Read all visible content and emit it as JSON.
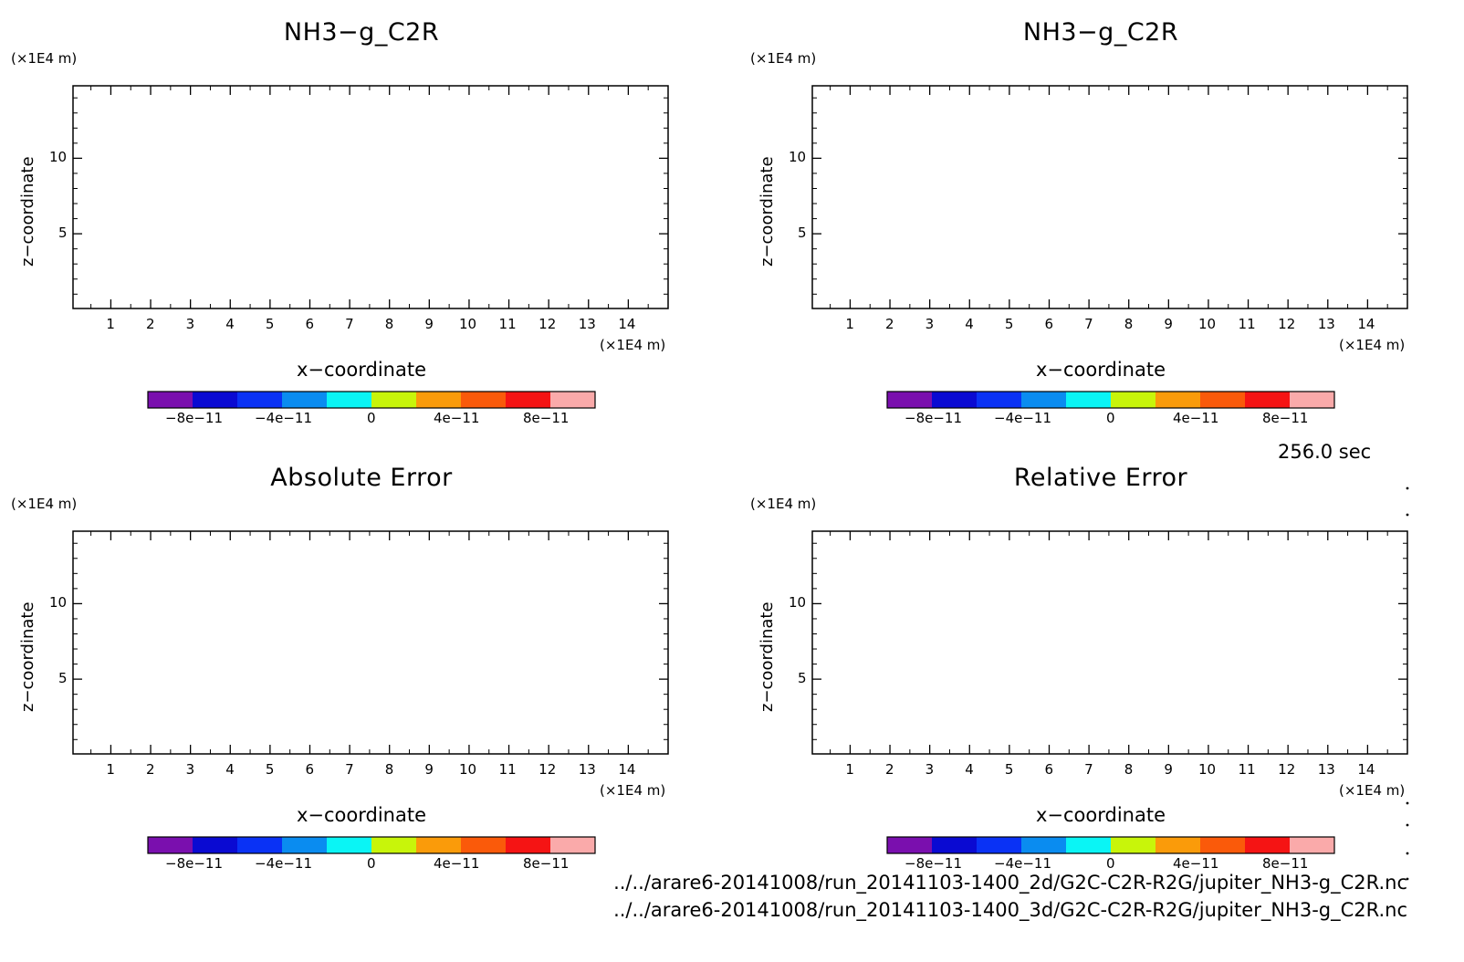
{
  "figure": {
    "time_label": "256.0 sec",
    "source_files": [
      "../../arare6-20141008/run_20141103-1400_2d/G2C-C2R-R2G/jupiter_NH3-g_C2R.nc",
      "../../arare6-20141008/run_20141103-1400_3d/G2C-C2R-R2G/jupiter_NH3-g_C2R.nc"
    ]
  },
  "chart_data": [
    {
      "type": "contour",
      "title": "NH3−g_C2R",
      "xlabel": "x−coordinate",
      "ylabel": "z−coordinate",
      "x_unit": "(×1E4 m)",
      "y_unit": "(×1E4 m)",
      "xlim": [
        0.05,
        15.0
      ],
      "ylim": [
        0.05,
        14.8
      ],
      "x_ticks": [
        1,
        2,
        3,
        4,
        5,
        6,
        7,
        8,
        9,
        10,
        11,
        12,
        13,
        14
      ],
      "y_ticks": [
        5,
        10
      ],
      "values": [],
      "colorbar": {
        "colors": [
          "#7a0fae",
          "#0a0ad2",
          "#0a32f5",
          "#0a8cf0",
          "#0af5f5",
          "#c8f50a",
          "#fa9b0a",
          "#fa5a0a",
          "#f51414",
          "#faaaaa"
        ],
        "bounds": [
          -1e-10,
          -8e-11,
          -6e-11,
          -4e-11,
          -2e-11,
          0,
          2e-11,
          4e-11,
          6e-11,
          8e-11,
          1e-10
        ],
        "tick_labels": [
          "−8e−11",
          "−4e−11",
          "0",
          "4e−11",
          "8e−11"
        ]
      }
    },
    {
      "type": "contour",
      "title": "NH3−g_C2R",
      "xlabel": "x−coordinate",
      "ylabel": "z−coordinate",
      "x_unit": "(×1E4 m)",
      "y_unit": "(×1E4 m)",
      "xlim": [
        0.05,
        15.0
      ],
      "ylim": [
        0.05,
        14.8
      ],
      "x_ticks": [
        1,
        2,
        3,
        4,
        5,
        6,
        7,
        8,
        9,
        10,
        11,
        12,
        13,
        14
      ],
      "y_ticks": [
        5,
        10
      ],
      "values": [],
      "colorbar": {
        "colors": [
          "#7a0fae",
          "#0a0ad2",
          "#0a32f5",
          "#0a8cf0",
          "#0af5f5",
          "#c8f50a",
          "#fa9b0a",
          "#fa5a0a",
          "#f51414",
          "#faaaaa"
        ],
        "bounds": [
          -1e-10,
          -8e-11,
          -6e-11,
          -4e-11,
          -2e-11,
          0,
          2e-11,
          4e-11,
          6e-11,
          8e-11,
          1e-10
        ],
        "tick_labels": [
          "−8e−11",
          "−4e−11",
          "0",
          "4e−11",
          "8e−11"
        ]
      }
    },
    {
      "type": "contour",
      "title": "Absolute Error",
      "xlabel": "x−coordinate",
      "ylabel": "z−coordinate",
      "x_unit": "(×1E4 m)",
      "y_unit": "(×1E4 m)",
      "xlim": [
        0.05,
        15.0
      ],
      "ylim": [
        0.05,
        14.8
      ],
      "x_ticks": [
        1,
        2,
        3,
        4,
        5,
        6,
        7,
        8,
        9,
        10,
        11,
        12,
        13,
        14
      ],
      "y_ticks": [
        5,
        10
      ],
      "values": [],
      "colorbar": {
        "colors": [
          "#7a0fae",
          "#0a0ad2",
          "#0a32f5",
          "#0a8cf0",
          "#0af5f5",
          "#c8f50a",
          "#fa9b0a",
          "#fa5a0a",
          "#f51414",
          "#faaaaa"
        ],
        "bounds": [
          -1e-10,
          -8e-11,
          -6e-11,
          -4e-11,
          -2e-11,
          0,
          2e-11,
          4e-11,
          6e-11,
          8e-11,
          1e-10
        ],
        "tick_labels": [
          "−8e−11",
          "−4e−11",
          "0",
          "4e−11",
          "8e−11"
        ]
      }
    },
    {
      "type": "contour",
      "title": "Relative Error",
      "xlabel": "x−coordinate",
      "ylabel": "z−coordinate",
      "x_unit": "(×1E4 m)",
      "y_unit": "(×1E4 m)",
      "xlim": [
        0.05,
        15.0
      ],
      "ylim": [
        0.05,
        14.8
      ],
      "x_ticks": [
        1,
        2,
        3,
        4,
        5,
        6,
        7,
        8,
        9,
        10,
        11,
        12,
        13,
        14
      ],
      "y_ticks": [
        5,
        10
      ],
      "values": [],
      "colorbar": {
        "colors": [
          "#7a0fae",
          "#0a0ad2",
          "#0a32f5",
          "#0a8cf0",
          "#0af5f5",
          "#c8f50a",
          "#fa9b0a",
          "#fa5a0a",
          "#f51414",
          "#faaaaa"
        ],
        "bounds": [
          -1e-10,
          -8e-11,
          -6e-11,
          -4e-11,
          -2e-11,
          0,
          2e-11,
          4e-11,
          6e-11,
          8e-11,
          1e-10
        ],
        "tick_labels": [
          "−8e−11",
          "−4e−11",
          "0",
          "4e−11",
          "8e−11"
        ]
      }
    }
  ]
}
